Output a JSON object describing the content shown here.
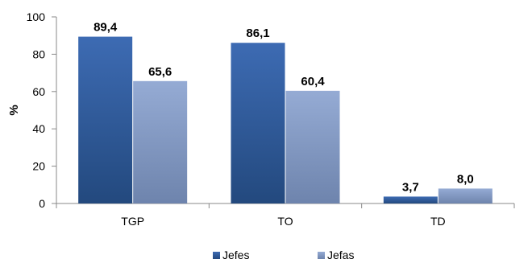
{
  "chart_data": {
    "type": "bar",
    "categories": [
      "TGP",
      "TO",
      "TD"
    ],
    "series": [
      {
        "name": "Jefes",
        "values": [
          89.4,
          86.1,
          3.7
        ],
        "labels": [
          "89,4",
          "86,1",
          "3,7"
        ],
        "color_top": "#3d6bb3",
        "color_bottom": "#23497e"
      },
      {
        "name": "Jefas",
        "values": [
          65.6,
          60.4,
          8.0
        ],
        "labels": [
          "65,6",
          "60,4",
          "8,0"
        ],
        "color_top": "#95abd4",
        "color_bottom": "#6e84ad"
      }
    ],
    "ylabel": "%",
    "ylim": [
      0,
      100
    ],
    "yticks": [
      0,
      20,
      40,
      60,
      80,
      100
    ],
    "ytick_labels": [
      "0",
      "20",
      "40",
      "60",
      "80",
      "100"
    ],
    "grid": false,
    "legend": "bottom"
  }
}
